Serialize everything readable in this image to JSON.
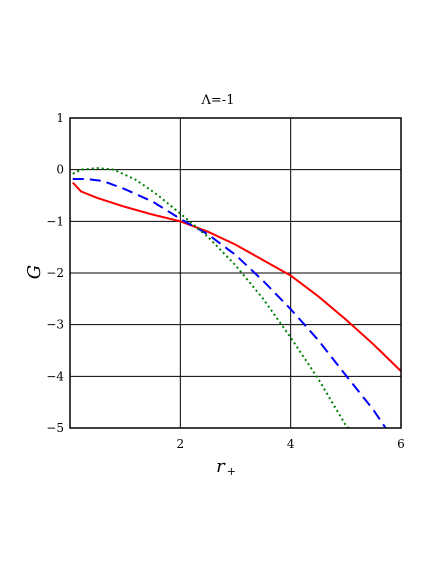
{
  "chart_data": {
    "type": "line",
    "title": "Λ=-1",
    "xlabel": "r",
    "xlabel_subscript": "+",
    "ylabel": "G",
    "xlim": [
      0,
      6
    ],
    "ylim": [
      -5,
      1
    ],
    "x_ticks": [
      2,
      4,
      6
    ],
    "x_tick_labels": [
      "2",
      "4",
      "6"
    ],
    "y_ticks": [
      1,
      0,
      -1,
      -2,
      -3,
      -4,
      -5
    ],
    "y_tick_labels": [
      "1",
      "0",
      "−1",
      "−2",
      "−3",
      "−4",
      "−5"
    ],
    "grid": true,
    "series": [
      {
        "color": "#ff0000",
        "style": "solid",
        "points": [
          [
            0.05,
            -0.25
          ],
          [
            0.2,
            -0.42
          ],
          [
            0.5,
            -0.55
          ],
          [
            1.0,
            -0.72
          ],
          [
            1.5,
            -0.87
          ],
          [
            2.0,
            -1.0
          ],
          [
            2.5,
            -1.2
          ],
          [
            3.0,
            -1.45
          ],
          [
            3.5,
            -1.75
          ],
          [
            4.0,
            -2.05
          ],
          [
            4.5,
            -2.45
          ],
          [
            5.0,
            -2.9
          ],
          [
            5.5,
            -3.38
          ],
          [
            6.0,
            -3.9
          ]
        ]
      },
      {
        "color": "#0000ff",
        "style": "dashed",
        "points": [
          [
            0.05,
            -0.18
          ],
          [
            0.3,
            -0.18
          ],
          [
            0.6,
            -0.22
          ],
          [
            1.0,
            -0.38
          ],
          [
            1.5,
            -0.62
          ],
          [
            2.0,
            -0.95
          ],
          [
            2.5,
            -1.25
          ],
          [
            3.0,
            -1.65
          ],
          [
            3.5,
            -2.15
          ],
          [
            4.0,
            -2.7
          ],
          [
            4.5,
            -3.3
          ],
          [
            5.0,
            -3.98
          ],
          [
            5.5,
            -4.65
          ],
          [
            5.72,
            -5.0
          ]
        ]
      },
      {
        "color": "#008000",
        "style": "dotted",
        "points": [
          [
            0.05,
            -0.08
          ],
          [
            0.2,
            0.0
          ],
          [
            0.5,
            0.03
          ],
          [
            0.8,
            0.0
          ],
          [
            1.2,
            -0.2
          ],
          [
            1.6,
            -0.5
          ],
          [
            2.0,
            -0.85
          ],
          [
            2.5,
            -1.3
          ],
          [
            3.0,
            -1.85
          ],
          [
            3.5,
            -2.5
          ],
          [
            4.0,
            -3.25
          ],
          [
            4.5,
            -4.05
          ],
          [
            5.0,
            -4.95
          ],
          [
            5.05,
            -5.0
          ]
        ]
      }
    ]
  }
}
